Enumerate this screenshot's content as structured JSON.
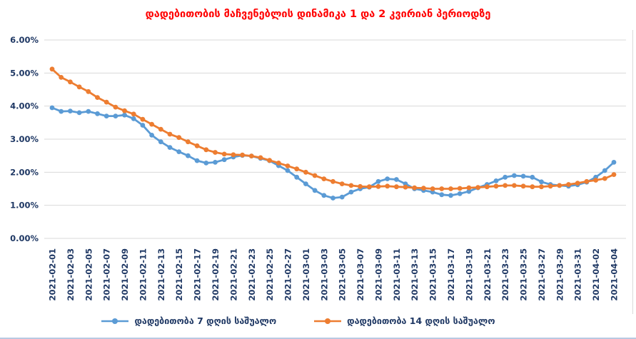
{
  "window": {
    "background": "#ffffff",
    "bottom_edge_color": "#b9c9e2"
  },
  "chart_data": {
    "type": "line",
    "title": "დადებითობის მაჩვენებლის დინამიკა 1 და 2 კვირიან პერიოდზე",
    "title_color": "#FF0000",
    "xlabel": "",
    "ylabel": "",
    "ylim": [
      0,
      6
    ],
    "grid": "horizontal",
    "grid_color": "#D9D9D9",
    "axis_label_color": "#1F3864",
    "legend_position": "bottom",
    "y_ticks": [
      "0.00%",
      "1.00%",
      "2.00%",
      "3.00%",
      "4.00%",
      "5.00%",
      "6.00%"
    ],
    "x_tick_step": 2,
    "x": [
      "2021-02-01",
      "2021-02-02",
      "2021-02-03",
      "2021-02-04",
      "2021-02-05",
      "2021-02-06",
      "2021-02-07",
      "2021-02-08",
      "2021-02-09",
      "2021-02-10",
      "2021-02-11",
      "2021-02-12",
      "2021-02-13",
      "2021-02-14",
      "2021-02-15",
      "2021-02-16",
      "2021-02-17",
      "2021-02-18",
      "2021-02-19",
      "2021-02-20",
      "2021-02-21",
      "2021-02-22",
      "2021-02-23",
      "2021-02-24",
      "2021-02-25",
      "2021-02-26",
      "2021-02-27",
      "2021-02-28",
      "2021-03-01",
      "2021-03-02",
      "2021-03-03",
      "2021-03-04",
      "2021-03-05",
      "2021-03-06",
      "2021-03-07",
      "2021-03-08",
      "2021-03-09",
      "2021-03-10",
      "2021-03-11",
      "2021-03-12",
      "2021-03-13",
      "2021-03-14",
      "2021-03-15",
      "2021-03-16",
      "2021-03-17",
      "2021-03-18",
      "2021-03-19",
      "2021-03-20",
      "2021-03-21",
      "2021-03-22",
      "2021-03-23",
      "2021-03-24",
      "2021-03-25",
      "2021-03-26",
      "2021-03-27",
      "2021-03-28",
      "2021-03-29",
      "2021-03-30",
      "2021-03-31",
      "2021-04-01",
      "2021-04-02",
      "2021-04-03",
      "2021-04-04"
    ],
    "series": [
      {
        "name": "დადებითობა 7 დღის საშუალო",
        "color": "#5B9BD5",
        "values": [
          3.95,
          3.84,
          3.85,
          3.8,
          3.84,
          3.77,
          3.7,
          3.7,
          3.73,
          3.62,
          3.42,
          3.12,
          2.92,
          2.75,
          2.62,
          2.5,
          2.35,
          2.28,
          2.3,
          2.38,
          2.46,
          2.51,
          2.49,
          2.42,
          2.35,
          2.2,
          2.05,
          1.85,
          1.65,
          1.45,
          1.3,
          1.22,
          1.25,
          1.4,
          1.5,
          1.55,
          1.72,
          1.8,
          1.78,
          1.65,
          1.5,
          1.45,
          1.4,
          1.32,
          1.3,
          1.35,
          1.42,
          1.53,
          1.63,
          1.74,
          1.85,
          1.9,
          1.88,
          1.85,
          1.71,
          1.63,
          1.6,
          1.58,
          1.62,
          1.7,
          1.85,
          2.05,
          2.3
        ]
      },
      {
        "name": "დადებითობა 14 დღის საშუალო",
        "color": "#ED7D31",
        "values": [
          5.12,
          4.87,
          4.73,
          4.58,
          4.44,
          4.26,
          4.12,
          3.97,
          3.86,
          3.76,
          3.6,
          3.45,
          3.3,
          3.15,
          3.05,
          2.92,
          2.8,
          2.68,
          2.6,
          2.55,
          2.53,
          2.52,
          2.49,
          2.44,
          2.36,
          2.28,
          2.19,
          2.1,
          2.0,
          1.9,
          1.8,
          1.72,
          1.65,
          1.6,
          1.57,
          1.56,
          1.57,
          1.58,
          1.56,
          1.55,
          1.53,
          1.52,
          1.5,
          1.5,
          1.5,
          1.51,
          1.53,
          1.54,
          1.56,
          1.58,
          1.6,
          1.6,
          1.58,
          1.56,
          1.56,
          1.58,
          1.6,
          1.63,
          1.67,
          1.72,
          1.76,
          1.81,
          1.93
        ]
      }
    ]
  }
}
